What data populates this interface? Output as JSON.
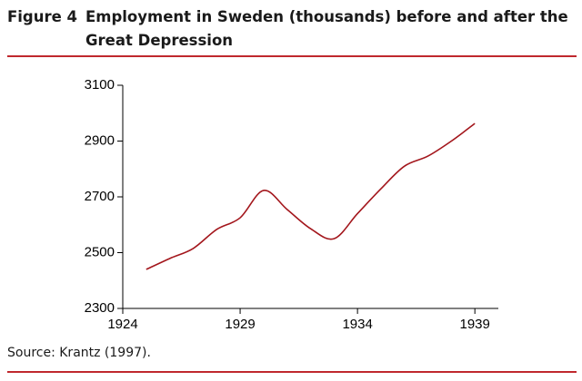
{
  "chart_data": {
    "type": "line",
    "figure_label": "Figure 4",
    "title": "Employment in Sweden (thousands) before and after the Great Depression",
    "source": "Source: Krantz (1997).",
    "x": [
      1925,
      1926,
      1927,
      1928,
      1929,
      1930,
      1931,
      1932,
      1933,
      1934,
      1935,
      1936,
      1937,
      1938,
      1939
    ],
    "values": [
      2440,
      2479,
      2515,
      2583,
      2625,
      2723,
      2655,
      2586,
      2550,
      2640,
      2729,
      2810,
      2846,
      2900,
      2963
    ],
    "color": "#a3161c",
    "xlim": [
      1924,
      1940
    ],
    "xticks": [
      1924,
      1929,
      1934,
      1939
    ],
    "ylim": [
      2300,
      3100
    ],
    "yticks": [
      2300,
      2500,
      2700,
      2900,
      3100
    ],
    "grid": false
  }
}
